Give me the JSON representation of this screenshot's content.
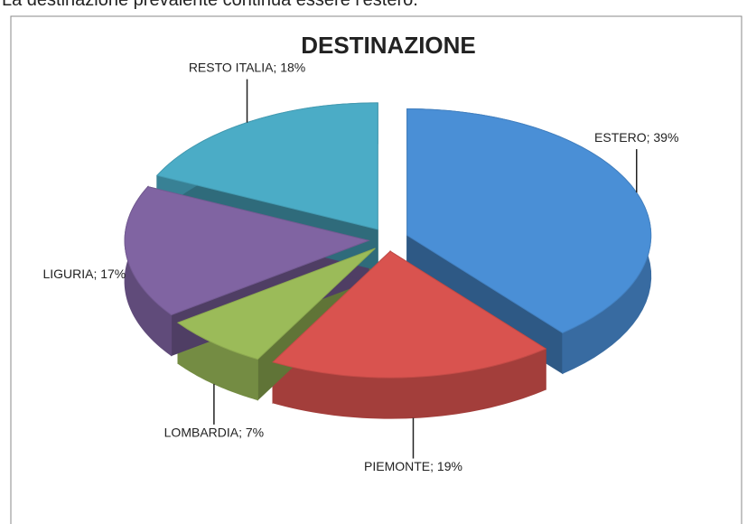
{
  "caption": "La destinazione prevalente continua essere l'estero.",
  "chart_data": {
    "type": "pie3d",
    "title": "DESTINAZIONE",
    "categories": [
      "ESTERO",
      "PIEMONTE",
      "LOMBARDIA",
      "LIGURIA",
      "RESTO ITALIA"
    ],
    "values": [
      39,
      19,
      7,
      17,
      18
    ],
    "value_labels": [
      "ESTERO; 39%",
      "PIEMONTE; 19%",
      "LOMBARDIA; 7%",
      "LIGURIA; 17%",
      "RESTO ITALIA; 18%"
    ],
    "colors": [
      "#4a8fd6",
      "#d9534f",
      "#9bbb59",
      "#8064a2",
      "#4bacc6"
    ]
  }
}
